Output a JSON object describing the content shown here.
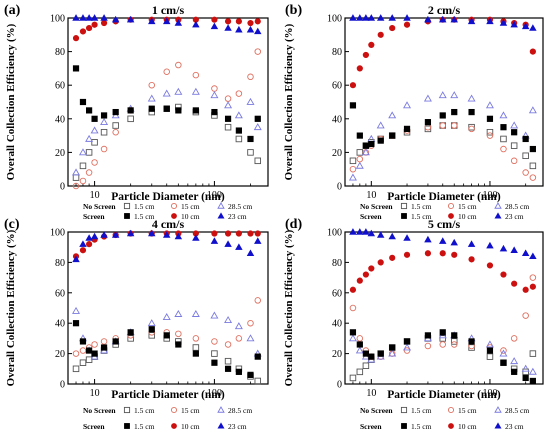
{
  "figure": {
    "ylabel": "Overall Collection Efficiency (%)",
    "xlabel": "Particle Diameter (nm)",
    "legend": {
      "row_labels": [
        "No Screen",
        "Screen"
      ],
      "entries": [
        "1.5 cm",
        "15 cm",
        "28.5 cm",
        "1.5 cm",
        "10 cm",
        "23 cm"
      ]
    },
    "colors": {
      "ns1": "#555555",
      "ns2": "#e07060",
      "ns3": "#7a7ae0",
      "sc1": "#000000",
      "sc2": "#cc1010",
      "sc3": "#1010cc"
    },
    "icons": [
      "open-square-marker",
      "open-circle-marker",
      "open-triangle-marker",
      "filled-square-marker",
      "filled-circle-marker",
      "filled-triangle-marker"
    ]
  },
  "chart_data": [
    {
      "panel": "(a)",
      "title": "1 cm/s",
      "type": "scatter",
      "xscale": "log",
      "xlim": [
        6,
        280
      ],
      "ylim": [
        0,
        100
      ],
      "xticks": [
        10,
        100
      ],
      "yticks": [
        0,
        20,
        40,
        60,
        80,
        100
      ],
      "series": [
        {
          "name": "No Screen 1.5 cm",
          "x": [
            7,
            8,
            9,
            10,
            12,
            15,
            20,
            30,
            40,
            50,
            70,
            100,
            130,
            160,
            200,
            230
          ],
          "y": [
            5,
            12,
            20,
            26,
            32,
            36,
            40,
            44,
            46,
            47,
            44,
            42,
            35,
            28,
            20,
            15
          ]
        },
        {
          "name": "No Screen 15 cm",
          "x": [
            7,
            8,
            9,
            10,
            12,
            15,
            20,
            30,
            40,
            50,
            70,
            100,
            130,
            160,
            200,
            230
          ],
          "y": [
            0,
            3,
            8,
            14,
            22,
            32,
            45,
            60,
            68,
            72,
            66,
            58,
            52,
            55,
            65,
            80
          ]
        },
        {
          "name": "No Screen 28.5 cm",
          "x": [
            7,
            8,
            9,
            10,
            12,
            15,
            20,
            30,
            40,
            50,
            70,
            100,
            130,
            160,
            200,
            230
          ],
          "y": [
            8,
            20,
            28,
            33,
            38,
            42,
            46,
            52,
            55,
            56,
            56,
            54,
            48,
            42,
            50,
            35
          ]
        },
        {
          "name": "Screen 1.5 cm",
          "x": [
            7,
            8,
            9,
            10,
            12,
            15,
            20,
            30,
            40,
            50,
            70,
            100,
            130,
            160,
            200,
            230
          ],
          "y": [
            70,
            50,
            45,
            40,
            42,
            44,
            45,
            46,
            46,
            45,
            45,
            44,
            40,
            33,
            28,
            40
          ]
        },
        {
          "name": "Screen 10 cm",
          "x": [
            7,
            8,
            9,
            10,
            12,
            15,
            20,
            30,
            40,
            50,
            70,
            100,
            130,
            160,
            200,
            230
          ],
          "y": [
            88,
            92,
            94,
            96,
            97,
            98,
            99,
            99,
            99,
            99,
            99,
            99,
            98,
            98,
            97,
            98
          ]
        },
        {
          "name": "Screen 23 cm",
          "x": [
            7,
            8,
            9,
            10,
            12,
            15,
            20,
            30,
            40,
            50,
            70,
            100,
            130,
            160,
            200,
            230
          ],
          "y": [
            100,
            100,
            100,
            100,
            100,
            99,
            99,
            98,
            98,
            97,
            96,
            95,
            94,
            93,
            93,
            92
          ]
        }
      ]
    },
    {
      "panel": "(b)",
      "title": "2 cm/s",
      "type": "scatter",
      "xscale": "log",
      "xlim": [
        6,
        280
      ],
      "ylim": [
        0,
        100
      ],
      "xticks": [
        10,
        100
      ],
      "yticks": [
        0,
        20,
        40,
        60,
        80,
        100
      ],
      "series": [
        {
          "name": "No Screen 1.5 cm",
          "x": [
            7,
            8,
            9,
            10,
            12,
            15,
            20,
            30,
            40,
            50,
            70,
            100,
            130,
            160,
            200,
            230
          ],
          "y": [
            15,
            20,
            24,
            26,
            28,
            30,
            32,
            34,
            36,
            36,
            35,
            32,
            28,
            24,
            18,
            12
          ]
        },
        {
          "name": "No Screen 15 cm",
          "x": [
            7,
            8,
            9,
            10,
            12,
            15,
            20,
            30,
            40,
            50,
            70,
            100,
            130,
            160,
            200,
            230
          ],
          "y": [
            10,
            16,
            20,
            24,
            28,
            30,
            33,
            35,
            36,
            36,
            34,
            30,
            22,
            15,
            8,
            5
          ]
        },
        {
          "name": "No Screen 28.5 cm",
          "x": [
            7,
            8,
            9,
            10,
            12,
            15,
            20,
            30,
            40,
            50,
            70,
            100,
            130,
            160,
            200,
            230
          ],
          "y": [
            5,
            12,
            20,
            28,
            36,
            42,
            48,
            52,
            54,
            54,
            52,
            48,
            42,
            36,
            30,
            45
          ]
        },
        {
          "name": "Screen 1.5 cm",
          "x": [
            7,
            8,
            9,
            10,
            12,
            15,
            20,
            30,
            40,
            50,
            70,
            100,
            130,
            160,
            200,
            230
          ],
          "y": [
            48,
            30,
            24,
            25,
            27,
            30,
            34,
            38,
            42,
            44,
            44,
            40,
            35,
            32,
            28,
            22
          ]
        },
        {
          "name": "Screen 10 cm",
          "x": [
            7,
            8,
            9,
            10,
            12,
            15,
            20,
            30,
            40,
            50,
            70,
            100,
            130,
            160,
            200,
            230
          ],
          "y": [
            60,
            70,
            78,
            84,
            90,
            94,
            96,
            98,
            99,
            99,
            99,
            99,
            98,
            97,
            96,
            80
          ]
        },
        {
          "name": "Screen 23 cm",
          "x": [
            7,
            8,
            9,
            10,
            12,
            15,
            20,
            30,
            40,
            50,
            70,
            100,
            130,
            160,
            200,
            230
          ],
          "y": [
            100,
            100,
            100,
            100,
            100,
            100,
            100,
            99,
            99,
            99,
            98,
            98,
            97,
            96,
            95,
            94
          ]
        }
      ]
    },
    {
      "panel": "(c)",
      "title": "4 cm/s",
      "type": "scatter",
      "xscale": "log",
      "xlim": [
        6,
        280
      ],
      "ylim": [
        0,
        100
      ],
      "xticks": [
        10,
        100
      ],
      "yticks": [
        0,
        20,
        40,
        60,
        80,
        100
      ],
      "series": [
        {
          "name": "No Screen 1.5 cm",
          "x": [
            7,
            8,
            9,
            10,
            12,
            15,
            20,
            30,
            40,
            50,
            70,
            100,
            130,
            160,
            200,
            230
          ],
          "y": [
            10,
            14,
            16,
            18,
            22,
            26,
            30,
            32,
            30,
            28,
            24,
            20,
            15,
            10,
            5,
            2
          ]
        },
        {
          "name": "No Screen 15 cm",
          "x": [
            7,
            8,
            9,
            10,
            12,
            15,
            20,
            30,
            40,
            50,
            70,
            100,
            130,
            160,
            200,
            230
          ],
          "y": [
            20,
            22,
            24,
            26,
            28,
            30,
            32,
            34,
            34,
            33,
            30,
            28,
            26,
            30,
            40,
            55
          ]
        },
        {
          "name": "No Screen 28.5 cm",
          "x": [
            7,
            8,
            9,
            10,
            12,
            15,
            20,
            30,
            40,
            50,
            70,
            100,
            130,
            160,
            200,
            230
          ],
          "y": [
            48,
            30,
            22,
            18,
            22,
            28,
            34,
            40,
            44,
            46,
            46,
            45,
            42,
            38,
            30,
            20
          ]
        },
        {
          "name": "Screen 1.5 cm",
          "x": [
            7,
            8,
            9,
            10,
            12,
            15,
            20,
            30,
            40,
            50,
            70,
            100,
            130,
            160,
            200,
            230
          ],
          "y": [
            40,
            28,
            22,
            20,
            24,
            28,
            34,
            36,
            32,
            26,
            20,
            14,
            10,
            8,
            6,
            18
          ]
        },
        {
          "name": "Screen 10 cm",
          "x": [
            7,
            8,
            9,
            10,
            12,
            15,
            20,
            30,
            40,
            50,
            70,
            100,
            130,
            160,
            200,
            230
          ],
          "y": [
            84,
            88,
            92,
            95,
            97,
            98,
            99,
            99,
            99,
            99,
            99,
            99,
            99,
            99,
            99,
            99
          ]
        },
        {
          "name": "Screen 23 cm",
          "x": [
            7,
            8,
            9,
            10,
            12,
            15,
            20,
            30,
            40,
            50,
            70,
            100,
            130,
            160,
            200,
            230
          ],
          "y": [
            82,
            92,
            96,
            97,
            98,
            98,
            99,
            99,
            98,
            97,
            96,
            94,
            92,
            90,
            86,
            94
          ]
        }
      ]
    },
    {
      "panel": "(d)",
      "title": "5 cm/s",
      "type": "scatter",
      "xscale": "log",
      "xlim": [
        6,
        280
      ],
      "ylim": [
        0,
        100
      ],
      "xticks": [
        10,
        100
      ],
      "yticks": [
        0,
        20,
        40,
        60,
        80,
        100
      ],
      "series": [
        {
          "name": "No Screen 1.5 cm",
          "x": [
            7,
            8,
            9,
            10,
            12,
            15,
            20,
            30,
            40,
            50,
            70,
            100,
            130,
            160,
            200,
            230
          ],
          "y": [
            4,
            8,
            12,
            16,
            20,
            24,
            28,
            30,
            30,
            28,
            24,
            18,
            14,
            10,
            8,
            20
          ]
        },
        {
          "name": "No Screen 15 cm",
          "x": [
            7,
            8,
            9,
            10,
            12,
            15,
            20,
            30,
            40,
            50,
            70,
            100,
            130,
            160,
            200,
            230
          ],
          "y": [
            50,
            30,
            22,
            18,
            18,
            20,
            22,
            25,
            26,
            26,
            25,
            24,
            22,
            30,
            45,
            70
          ]
        },
        {
          "name": "No Screen 28.5 cm",
          "x": [
            7,
            8,
            9,
            10,
            12,
            15,
            20,
            30,
            40,
            50,
            70,
            100,
            130,
            160,
            200,
            230
          ],
          "y": [
            30,
            22,
            18,
            16,
            18,
            20,
            24,
            30,
            32,
            32,
            30,
            26,
            20,
            15,
            10,
            8
          ]
        },
        {
          "name": "Screen 1.5 cm",
          "x": [
            7,
            8,
            9,
            10,
            12,
            15,
            20,
            30,
            40,
            50,
            70,
            100,
            130,
            160,
            200,
            230
          ],
          "y": [
            34,
            26,
            20,
            18,
            20,
            24,
            28,
            32,
            34,
            32,
            28,
            22,
            14,
            8,
            4,
            2
          ]
        },
        {
          "name": "Screen 10 cm",
          "x": [
            7,
            8,
            9,
            10,
            12,
            15,
            20,
            30,
            40,
            50,
            70,
            100,
            130,
            160,
            200,
            230
          ],
          "y": [
            62,
            68,
            72,
            76,
            80,
            83,
            85,
            86,
            86,
            85,
            82,
            78,
            72,
            66,
            62,
            64
          ]
        },
        {
          "name": "Screen 23 cm",
          "x": [
            7,
            8,
            9,
            10,
            12,
            15,
            20,
            30,
            40,
            50,
            70,
            100,
            130,
            160,
            200,
            230
          ],
          "y": [
            100,
            100,
            100,
            99,
            98,
            97,
            96,
            95,
            94,
            93,
            92,
            91,
            89,
            88,
            86,
            84
          ]
        }
      ]
    }
  ]
}
